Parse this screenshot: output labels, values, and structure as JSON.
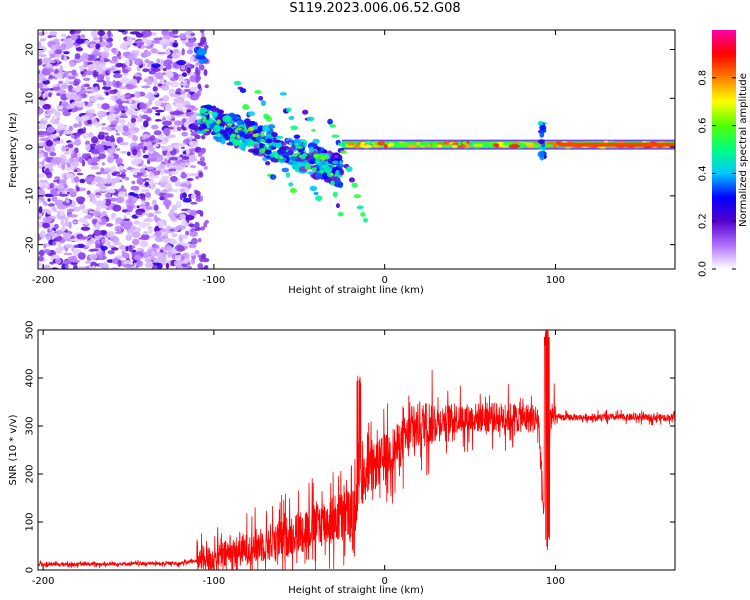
{
  "title": "S119.2023.006.06.52.G08",
  "chart_data": [
    {
      "type": "heatmap",
      "name": "spectrogram",
      "xlabel": "Height of straight line (km)",
      "ylabel": "Frequency (Hz)",
      "xlim": [
        -203,
        170
      ],
      "ylim": [
        -25,
        24
      ],
      "xticks": [
        -200,
        -100,
        0,
        100
      ],
      "yticks": [
        -20,
        -10,
        0,
        10,
        20
      ],
      "colorbar": {
        "label": "Normalized spectral amplitude",
        "range": [
          0.0,
          1.0
        ],
        "ticks": [
          0.0,
          0.2,
          0.4,
          0.6,
          0.8
        ],
        "colormap": [
          "#ffffff",
          "#b070ff",
          "#5500cc",
          "#0000ff",
          "#00c8ff",
          "#00ff80",
          "#50ff00",
          "#ffff00",
          "#ff8000",
          "#ff0000",
          "#ff00aa"
        ]
      },
      "features": [
        {
          "label": "noise",
          "x_range": [
            -203,
            -110
          ],
          "freq_range": [
            -25,
            24
          ],
          "amplitude": 0.2
        },
        {
          "label": "track_segment_1",
          "x_range": [
            -108,
            -25
          ],
          "freq_range": [
            6,
            -5
          ],
          "amplitude": 0.3
        },
        {
          "label": "carrier_line",
          "x_range": [
            -25,
            170
          ],
          "freq": 0.5,
          "amplitude": 0.85
        },
        {
          "label": "spike",
          "x": 92,
          "freq_range": [
            -3,
            5
          ],
          "amplitude": 0.4
        }
      ]
    },
    {
      "type": "line",
      "name": "snr",
      "xlabel": "Height of straight line (km)",
      "ylabel": "SNR (10 * v/v)",
      "xlim": [
        -203,
        170
      ],
      "ylim": [
        0,
        500
      ],
      "xticks": [
        -200,
        -100,
        0,
        100
      ],
      "yticks": [
        0,
        100,
        200,
        300,
        400,
        500
      ],
      "series": [
        {
          "name": "SNR",
          "color": "#ff0000",
          "x": [
            -203,
            -180,
            -150,
            -120,
            -100,
            -80,
            -60,
            -40,
            -25,
            -18,
            -15,
            -10,
            0,
            10,
            20,
            30,
            40,
            60,
            80,
            90,
            94,
            97,
            100,
            120,
            140,
            170
          ],
          "y": [
            12,
            12,
            13,
            14,
            25,
            45,
            65,
            95,
            110,
            120,
            175,
            200,
            235,
            265,
            300,
            310,
            315,
            318,
            318,
            315,
            60,
            320,
            318,
            318,
            318,
            318
          ]
        }
      ]
    }
  ]
}
